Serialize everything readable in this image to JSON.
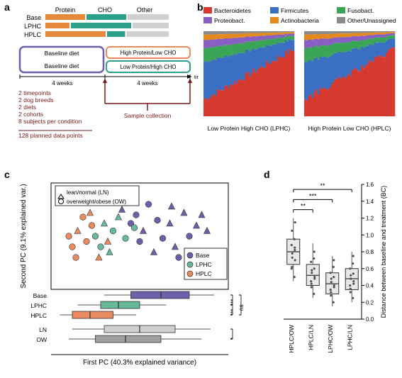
{
  "labels": {
    "a": "a",
    "b": "b",
    "c": "c",
    "d": "d"
  },
  "colors": {
    "base": "#6d5fa9",
    "lphc": "#67b99a",
    "hplc": "#e98a5f",
    "cho": "#2ca089",
    "protein": "#e58a3a",
    "other": "#d0d0d0",
    "gray": "#bdbdbd",
    "ln": "#d0d0d0",
    "ow": "#9e9e9e",
    "annot": "#7a1a1a",
    "axis": "#000000",
    "diet_box_base": "#6d5fa9",
    "diet_box_hplc": "#e98a5f",
    "diet_box_lphc": "#2ca089"
  },
  "panelA": {
    "rows": [
      "Base",
      "LPHC",
      "HPLC"
    ],
    "segments": [
      "Protein",
      "CHO",
      "Other"
    ],
    "barValues": [
      [
        33,
        33,
        34
      ],
      [
        20,
        50,
        30
      ],
      [
        50,
        15,
        35
      ]
    ],
    "barColors": [
      "#e58a3a",
      "#2ca089",
      "#d0d0d0"
    ],
    "timeline": {
      "baseline_label": "Baseline diet",
      "diet1": "High Protein/Low CHO",
      "diet2": "Low Protein/High CHO",
      "weeks_left": "4 weeks",
      "weeks_right": "4 weeks",
      "time_label": "time"
    },
    "annotations": [
      "2 timepoints",
      "2 dog breeds",
      "2 diets",
      "2 cohorts",
      "8 subjects per condition"
    ],
    "annot_result": "128 planned data points",
    "sample_label": "Sample collection"
  },
  "panelB": {
    "legend": [
      {
        "name": "Bacteroidetes",
        "color": "#d63a2e"
      },
      {
        "name": "Firmicutes",
        "color": "#3a6fc3"
      },
      {
        "name": "Fusobact.",
        "color": "#3aa655"
      },
      {
        "name": "Proteobact.",
        "color": "#8a5fc3"
      },
      {
        "name": "Actinobacteria",
        "color": "#e58a1a"
      },
      {
        "name": "Other/Unassigned",
        "color": "#8a8a8a"
      }
    ],
    "titles": [
      "Low Protein High CHO (LPHC)",
      "High Protein Low CHO (HPLC)"
    ],
    "bars_per_plot": 48
  },
  "panelC": {
    "xlabel": "First PC (40.3% explained variance)",
    "ylabel": "Second PC (9.1% explained var.)",
    "legend_groups": {
      "shape": [
        {
          "label": "lean/normal (LN)",
          "marker": "triangle"
        },
        {
          "label": "overweight/obese (OW)",
          "marker": "circle"
        }
      ],
      "color": [
        {
          "label": "Base",
          "color": "#6d5fa9"
        },
        {
          "label": "LPHC",
          "color": "#67b99a"
        },
        {
          "label": "HPLC",
          "color": "#e98a5f"
        }
      ]
    },
    "scatter": [
      {
        "x": 0.75,
        "y": 0.72,
        "c": "#6d5fa9",
        "m": "t"
      },
      {
        "x": 0.82,
        "y": 0.6,
        "c": "#6d5fa9",
        "m": "t"
      },
      {
        "x": 0.68,
        "y": 0.78,
        "c": "#6d5fa9",
        "m": "t"
      },
      {
        "x": 0.6,
        "y": 0.65,
        "c": "#6d5fa9",
        "m": "c"
      },
      {
        "x": 0.55,
        "y": 0.8,
        "c": "#6d5fa9",
        "m": "c"
      },
      {
        "x": 0.7,
        "y": 0.4,
        "c": "#6d5fa9",
        "m": "t"
      },
      {
        "x": 0.52,
        "y": 0.55,
        "c": "#6d5fa9",
        "m": "t"
      },
      {
        "x": 0.48,
        "y": 0.7,
        "c": "#6d5fa9",
        "m": "c"
      },
      {
        "x": 0.88,
        "y": 0.55,
        "c": "#6d5fa9",
        "m": "t"
      },
      {
        "x": 0.63,
        "y": 0.48,
        "c": "#6d5fa9",
        "m": "c"
      },
      {
        "x": 0.45,
        "y": 0.62,
        "c": "#6d5fa9",
        "m": "c"
      },
      {
        "x": 0.58,
        "y": 0.35,
        "c": "#6d5fa9",
        "m": "t"
      },
      {
        "x": 0.78,
        "y": 0.5,
        "c": "#6d5fa9",
        "m": "c"
      },
      {
        "x": 0.85,
        "y": 0.7,
        "c": "#6d5fa9",
        "m": "t"
      },
      {
        "x": 0.5,
        "y": 0.45,
        "c": "#6d5fa9",
        "m": "c"
      },
      {
        "x": 0.67,
        "y": 0.62,
        "c": "#6d5fa9",
        "m": "t"
      },
      {
        "x": 0.72,
        "y": 0.3,
        "c": "#6d5fa9",
        "m": "c"
      },
      {
        "x": 0.4,
        "y": 0.75,
        "c": "#6d5fa9",
        "m": "t"
      },
      {
        "x": 0.35,
        "y": 0.55,
        "c": "#67b99a",
        "m": "c"
      },
      {
        "x": 0.3,
        "y": 0.62,
        "c": "#67b99a",
        "m": "t"
      },
      {
        "x": 0.42,
        "y": 0.48,
        "c": "#67b99a",
        "m": "c"
      },
      {
        "x": 0.28,
        "y": 0.4,
        "c": "#67b99a",
        "m": "c"
      },
      {
        "x": 0.38,
        "y": 0.68,
        "c": "#67b99a",
        "m": "t"
      },
      {
        "x": 0.47,
        "y": 0.58,
        "c": "#67b99a",
        "m": "c"
      },
      {
        "x": 0.33,
        "y": 0.35,
        "c": "#67b99a",
        "m": "t"
      },
      {
        "x": 0.25,
        "y": 0.5,
        "c": "#67b99a",
        "m": "c"
      },
      {
        "x": 0.2,
        "y": 0.45,
        "c": "#e98a5f",
        "m": "c"
      },
      {
        "x": 0.15,
        "y": 0.55,
        "c": "#e98a5f",
        "m": "t"
      },
      {
        "x": 0.23,
        "y": 0.6,
        "c": "#e98a5f",
        "m": "c"
      },
      {
        "x": 0.12,
        "y": 0.4,
        "c": "#e98a5f",
        "m": "c"
      },
      {
        "x": 0.27,
        "y": 0.3,
        "c": "#e98a5f",
        "m": "t"
      },
      {
        "x": 0.18,
        "y": 0.68,
        "c": "#e98a5f",
        "m": "c"
      },
      {
        "x": 0.1,
        "y": 0.5,
        "c": "#e98a5f",
        "m": "c"
      },
      {
        "x": 0.32,
        "y": 0.45,
        "c": "#e98a5f",
        "m": "t"
      },
      {
        "x": 0.14,
        "y": 0.3,
        "c": "#e98a5f",
        "m": "c"
      },
      {
        "x": 0.22,
        "y": 0.72,
        "c": "#e98a5f",
        "m": "t"
      }
    ],
    "boxplots": [
      {
        "label": "Base",
        "color": "#6d5fa9",
        "q1": 0.45,
        "med": 0.62,
        "q3": 0.78,
        "lo": 0.3,
        "hi": 0.92
      },
      {
        "label": "LPHC",
        "color": "#67b99a",
        "q1": 0.28,
        "med": 0.38,
        "q3": 0.5,
        "lo": 0.15,
        "hi": 0.65
      },
      {
        "label": "HPLC",
        "color": "#e98a5f",
        "q1": 0.12,
        "med": 0.22,
        "q3": 0.35,
        "lo": 0.05,
        "hi": 0.48
      },
      {
        "label": "LN",
        "color": "#d0d0d0",
        "q1": 0.3,
        "med": 0.5,
        "q3": 0.7,
        "lo": 0.12,
        "hi": 0.9
      },
      {
        "label": "OW",
        "color": "#9e9e9e",
        "q1": 0.25,
        "med": 0.42,
        "q3": 0.62,
        "lo": 0.1,
        "hi": 0.85
      }
    ],
    "sig": [
      {
        "between": "LPHC-HPLC",
        "text": "***"
      },
      {
        "between": "Base-LPHC",
        "text": "***"
      },
      {
        "between": "Base-HPLC",
        "text": "ns"
      },
      {
        "between": "LN-OW",
        "text": "*"
      }
    ]
  },
  "panelD": {
    "ylabel": "Distance between baseline and treatment (BC)",
    "ylim": [
      0,
      1.6
    ],
    "ytick_step": 0.2,
    "groups": [
      {
        "label": "HPLC/OW",
        "q1": 0.65,
        "med": 0.8,
        "q3": 0.95,
        "lo": 0.45,
        "hi": 1.2,
        "pts": [
          0.5,
          0.62,
          0.7,
          0.78,
          0.82,
          0.88,
          0.95,
          1.05,
          1.15,
          0.73,
          0.85,
          0.6
        ]
      },
      {
        "label": "HPLC/LN",
        "q1": 0.4,
        "med": 0.52,
        "q3": 0.65,
        "lo": 0.25,
        "hi": 0.9,
        "pts": [
          0.3,
          0.42,
          0.48,
          0.55,
          0.6,
          0.68,
          0.72,
          0.38,
          0.5,
          0.58,
          0.8,
          0.45
        ]
      },
      {
        "label": "LPHC/OW",
        "q1": 0.3,
        "med": 0.42,
        "q3": 0.55,
        "lo": 0.15,
        "hi": 0.75,
        "pts": [
          0.2,
          0.32,
          0.38,
          0.44,
          0.5,
          0.55,
          0.62,
          0.28,
          0.4,
          0.48,
          0.7,
          0.35
        ]
      },
      {
        "label": "LPHC/LN",
        "q1": 0.35,
        "med": 0.48,
        "q3": 0.6,
        "lo": 0.2,
        "hi": 0.8,
        "pts": [
          0.25,
          0.36,
          0.42,
          0.48,
          0.54,
          0.6,
          0.66,
          0.32,
          0.45,
          0.52,
          0.75,
          0.4
        ]
      }
    ],
    "sig": [
      {
        "i": 0,
        "j": 1,
        "text": "**",
        "y": 1.3
      },
      {
        "i": 0,
        "j": 2,
        "text": "***",
        "y": 1.42
      },
      {
        "i": 0,
        "j": 3,
        "text": "**",
        "y": 1.54
      }
    ],
    "box_color": "#e8e8e8",
    "point_color": "#555555"
  }
}
